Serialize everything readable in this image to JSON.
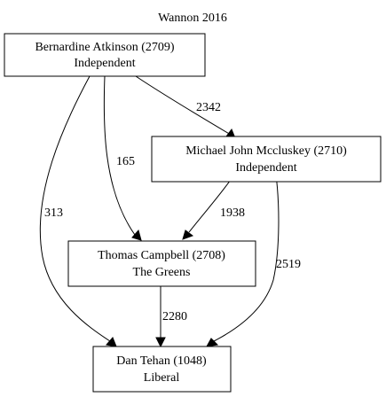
{
  "title": "Wannon 2016",
  "nodes": {
    "atkinson": {
      "line1": "Bernardine Atkinson (2709)",
      "line2": "Independent"
    },
    "mccluskey": {
      "line1": "Michael John Mccluskey (2710)",
      "line2": "Independent"
    },
    "campbell": {
      "line1": "Thomas Campbell (2708)",
      "line2": "The Greens"
    },
    "tehan": {
      "line1": "Dan Tehan (1048)",
      "line2": "Liberal"
    }
  },
  "edges": {
    "atkinson_mccluskey": "2342",
    "atkinson_campbell": "165",
    "atkinson_tehan": "313",
    "mccluskey_campbell": "1938",
    "mccluskey_tehan": "2519",
    "campbell_tehan": "2280"
  }
}
